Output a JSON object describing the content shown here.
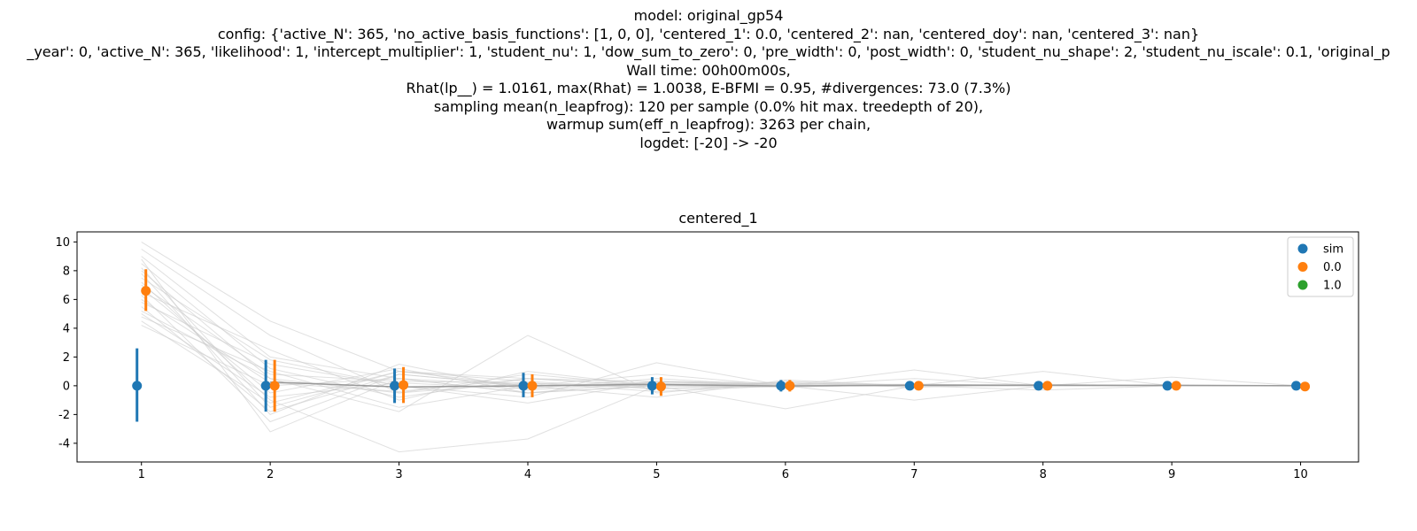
{
  "suptitle": {
    "lines": [
      "model: original_gp54",
      "config: {'active_N': 365, 'no_active_basis_functions': [1, 0, 0], 'centered_1': 0.0, 'centered_2': nan, 'centered_doy': nan, 'centered_3': nan}",
      "_year': 0, 'active_N': 365, 'likelihood': 1, 'intercept_multiplier': 1, 'student_nu': 1, 'dow_sum_to_zero': 0, 'pre_width': 0, 'post_width': 0, 'student_nu_shape': 2, 'student_nu_iscale': 0.1, 'original_p",
      "Wall time: 00h00m00s,",
      "Rhat(lp__) = 1.0161, max(Rhat) = 1.0038, E-BFMI = 0.95, #divergences: 73.0 (7.3%)",
      "sampling mean(n_leapfrog): 120 per sample (0.0% hit max. treedepth of 20),",
      "warmup sum(eff_n_leapfrog): 3263 per chain,",
      "logdet: [-20] -> -20"
    ]
  },
  "colors": {
    "sim": "#1f77b4",
    "fit_0": "#ff7f0e",
    "fit_1": "#2ca02c",
    "draws": "#cccccc",
    "axis": "#000000"
  },
  "chart_data": {
    "type": "scatter",
    "title": "centered_1",
    "xlabel": "",
    "ylabel": "",
    "xlim": [
      0.5,
      10.45
    ],
    "ylim": [
      -5.3,
      10.7
    ],
    "x_ticks": [
      1,
      2,
      3,
      4,
      5,
      6,
      7,
      8,
      9,
      10
    ],
    "y_ticks": [
      -4,
      -2,
      0,
      2,
      4,
      6,
      8,
      10
    ],
    "grid": false,
    "legend_position": "top-right",
    "legend": [
      "sim",
      "0.0",
      "1.0"
    ],
    "series": [
      {
        "name": "sim",
        "x": [
          1,
          2,
          3,
          4,
          5,
          6,
          7,
          8,
          9,
          10
        ],
        "y": [
          0.0,
          0.0,
          0.0,
          0.0,
          0.0,
          0.0,
          0.0,
          0.0,
          0.0,
          0.0
        ],
        "lower": [
          -2.5,
          -1.8,
          -1.2,
          -0.8,
          -0.6,
          -0.4,
          -0.3,
          -0.2,
          -0.15,
          -0.1
        ],
        "upper": [
          2.6,
          1.8,
          1.2,
          0.9,
          0.6,
          0.4,
          0.3,
          0.2,
          0.15,
          0.1
        ]
      },
      {
        "name": "0.0",
        "x": [
          1,
          2,
          3,
          4,
          5,
          6,
          7,
          8,
          9,
          10
        ],
        "y": [
          6.6,
          0.0,
          0.05,
          0.0,
          -0.05,
          0.0,
          0.0,
          0.0,
          0.0,
          -0.05
        ],
        "lower": [
          5.2,
          -1.8,
          -1.2,
          -0.8,
          -0.7,
          -0.4,
          -0.3,
          -0.2,
          -0.15,
          -0.1
        ],
        "upper": [
          8.1,
          1.8,
          1.3,
          0.8,
          0.6,
          0.4,
          0.3,
          0.2,
          0.15,
          0.1
        ]
      },
      {
        "name": "1.0",
        "x": [],
        "y": []
      }
    ],
    "draws_x": [
      1,
      2,
      3,
      4,
      5,
      6,
      7,
      8,
      9,
      10
    ],
    "draws": [
      [
        10.0,
        4.5,
        1.0,
        0.5,
        0.3,
        0.1,
        0.1,
        0.05,
        0.0,
        0.0
      ],
      [
        9.5,
        3.5,
        -0.5,
        0.2,
        -0.2,
        0.0,
        0.1,
        0.0,
        0.0,
        0.0
      ],
      [
        9.0,
        2.0,
        0.5,
        -0.5,
        0.3,
        0.2,
        -0.1,
        0.1,
        0.0,
        0.0
      ],
      [
        8.8,
        -3.2,
        0.5,
        0.0,
        0.0,
        0.0,
        0.0,
        0.0,
        0.0,
        0.0
      ],
      [
        8.5,
        1.2,
        -0.8,
        0.5,
        0.0,
        -0.1,
        0.1,
        0.0,
        0.0,
        0.0
      ],
      [
        8.2,
        -1.5,
        1.0,
        0.0,
        0.2,
        0.0,
        0.0,
        0.0,
        0.0,
        0.0
      ],
      [
        8.0,
        0.5,
        -1.8,
        3.5,
        -0.5,
        0.3,
        0.0,
        0.0,
        0.0,
        0.0
      ],
      [
        7.8,
        -2.0,
        1.5,
        -0.3,
        0.3,
        0.0,
        0.0,
        0.0,
        0.0,
        0.0
      ],
      [
        7.5,
        1.8,
        0.0,
        -0.8,
        1.6,
        0.0,
        0.0,
        0.0,
        0.0,
        0.0
      ],
      [
        7.2,
        -1.0,
        -4.6,
        -3.7,
        0.0,
        0.2,
        0.0,
        0.0,
        0.0,
        0.0
      ],
      [
        7.0,
        0.8,
        0.3,
        0.2,
        -0.4,
        0.0,
        1.1,
        0.0,
        0.0,
        0.0
      ],
      [
        6.8,
        -0.5,
        1.2,
        -0.5,
        0.0,
        -1.6,
        0.0,
        0.0,
        0.0,
        0.0
      ],
      [
        6.5,
        2.5,
        -1.0,
        1.0,
        0.0,
        0.0,
        0.0,
        1.0,
        0.0,
        0.0
      ],
      [
        6.3,
        -2.5,
        0.8,
        0.0,
        0.8,
        0.0,
        -1.0,
        0.0,
        0.0,
        0.0
      ],
      [
        6.0,
        0.2,
        -0.4,
        0.5,
        0.0,
        0.0,
        0.0,
        0.0,
        0.6,
        0.0
      ],
      [
        5.8,
        1.5,
        0.0,
        -1.2,
        0.3,
        0.0,
        0.0,
        0.0,
        0.0,
        0.0
      ],
      [
        5.5,
        -1.8,
        0.8,
        0.0,
        -0.8,
        0.4,
        0.0,
        0.0,
        0.0,
        0.0
      ],
      [
        5.2,
        0.5,
        -0.5,
        0.8,
        0.0,
        0.0,
        0.0,
        -0.3,
        0.0,
        0.0
      ],
      [
        5.0,
        -0.8,
        0.2,
        -0.2,
        0.5,
        0.0,
        0.0,
        0.0,
        0.0,
        0.0
      ],
      [
        4.8,
        1.0,
        -1.5,
        0.0,
        0.0,
        0.0,
        0.5,
        0.0,
        0.0,
        0.0
      ],
      [
        4.5,
        -1.2,
        1.0,
        0.3,
        -0.2,
        0.0,
        0.0,
        0.0,
        0.0,
        0.0
      ],
      [
        4.2,
        0.0,
        0.5,
        -0.5,
        0.0,
        0.0,
        0.0,
        0.0,
        0.0,
        0.0
      ]
    ]
  }
}
